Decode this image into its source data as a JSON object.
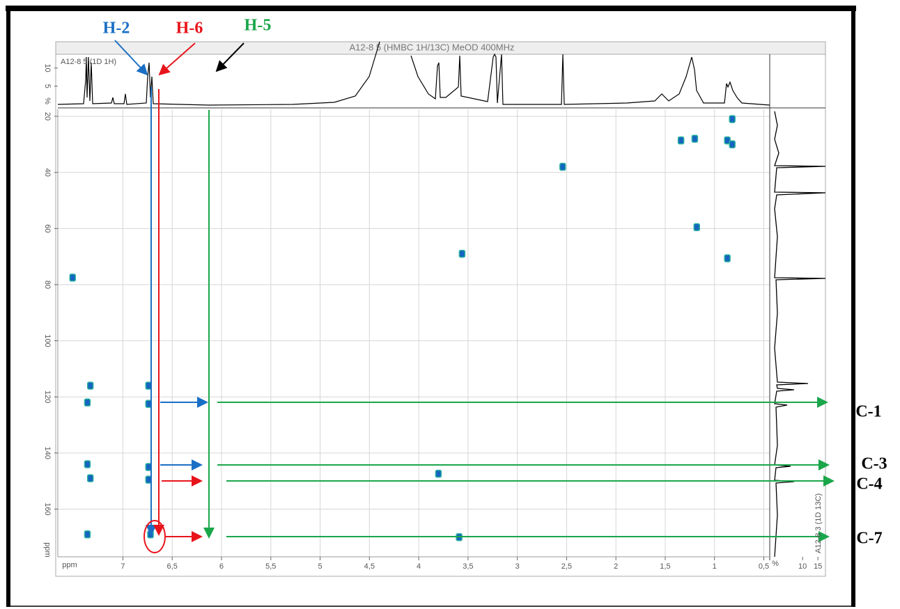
{
  "chart_data": {
    "type": "scatter",
    "title": "A12-8 5 (HMBC 1H/13C) MeOD 400MHz",
    "xlabel": "ppm",
    "ylabel": "ppm",
    "x": [
      7.33,
      7.36,
      7.36,
      7.33,
      7.36,
      7.51,
      6.74,
      6.74,
      6.74,
      6.74,
      6.72,
      3.8,
      3.59,
      3.56,
      2.54,
      1.18,
      0.87,
      1.2,
      1.34,
      0.87,
      0.82,
      0.82
    ],
    "values": [
      116,
      122,
      144,
      149,
      169,
      77.5,
      122.5,
      116,
      145,
      149.5,
      169,
      147.4,
      170,
      69,
      38,
      59.5,
      70.6,
      28,
      28.6,
      28.6,
      30,
      21
    ],
    "color": "#1565c0",
    "xlim": [
      7.66,
      0.44
    ],
    "ylim": [
      17.5,
      177
    ],
    "xticks": [
      7,
      {
        "value": 6.5,
        "label": "6,5"
      },
      6,
      {
        "value": 5.5,
        "label": "5,5"
      },
      5,
      {
        "value": 4.5,
        "label": "4,5"
      },
      4,
      {
        "value": 3.5,
        "label": "3,5"
      },
      3,
      {
        "value": 2.5,
        "label": "2,5"
      },
      2,
      {
        "value": 1.5,
        "label": "1,5"
      },
      1,
      {
        "value": 0.5,
        "label": "0,5"
      }
    ],
    "yticks": [
      20,
      40,
      60,
      80,
      100,
      120,
      140,
      160
    ],
    "grid": true,
    "top_projection": {
      "label": "A12-8 5 (1D 1H)",
      "unit_label": "%",
      "lim": [
        0,
        13
      ],
      "ticks": [
        5,
        10
      ]
    },
    "side_projection": {
      "label": "A12-8 3 (1D 13C)",
      "unit_label": "%",
      "lim": [
        0,
        17
      ],
      "ticks": [
        10,
        15
      ]
    },
    "annotations": [
      {
        "text": "H-2",
        "color": "#1a6fc4"
      },
      {
        "text": "H-6",
        "color": "#e8141b"
      },
      {
        "text": "H-5",
        "color": "#1aa64a"
      },
      {
        "text": "C-1",
        "color": "#000000"
      },
      {
        "text": "C-3",
        "color": "#000000"
      },
      {
        "text": "C-4",
        "color": "#000000"
      },
      {
        "text": "C-7",
        "color": "#000000"
      }
    ]
  }
}
